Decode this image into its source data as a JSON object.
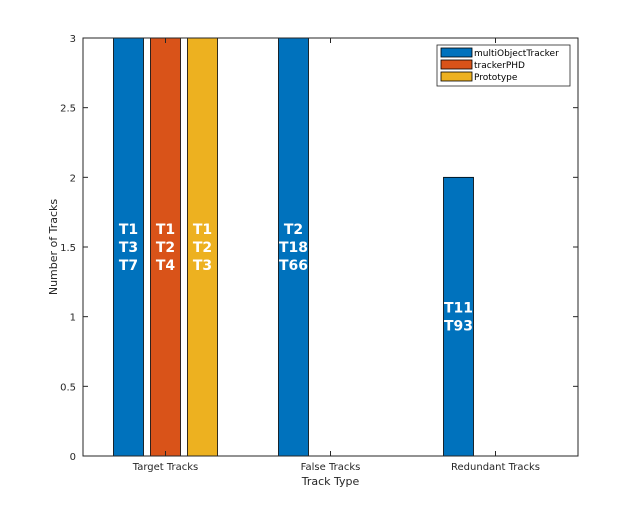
{
  "chart_data": {
    "type": "bar",
    "title": "",
    "xlabel": "Track Type",
    "ylabel": "Number of Tracks",
    "categories": [
      "Target Tracks",
      "False Tracks",
      "Redundant Tracks"
    ],
    "ylim": [
      0,
      3
    ],
    "yticks": [
      "0",
      "0.5",
      "1",
      "1.5",
      "2",
      "2.5",
      "3"
    ],
    "ytick_values": [
      0,
      0.5,
      1,
      1.5,
      2,
      2.5,
      3
    ],
    "grid": false,
    "legend_position": "top-right",
    "series": [
      {
        "name": "multiObjectTracker",
        "color": "#0072BD",
        "values": [
          3,
          3,
          2
        ],
        "labels": [
          [
            "T1",
            "T3",
            "T7"
          ],
          [
            "T2",
            "T18",
            "T66"
          ],
          [
            "T11",
            "T93"
          ]
        ]
      },
      {
        "name": "trackerPHD",
        "color": "#D95319",
        "values": [
          3,
          0,
          0
        ],
        "labels": [
          [
            "T1",
            "T2",
            "T4"
          ],
          [],
          []
        ]
      },
      {
        "name": "Prototype",
        "color": "#EDB120",
        "values": [
          3,
          0,
          0
        ],
        "labels": [
          [
            "T1",
            "T2",
            "T3"
          ],
          [],
          []
        ]
      }
    ]
  }
}
